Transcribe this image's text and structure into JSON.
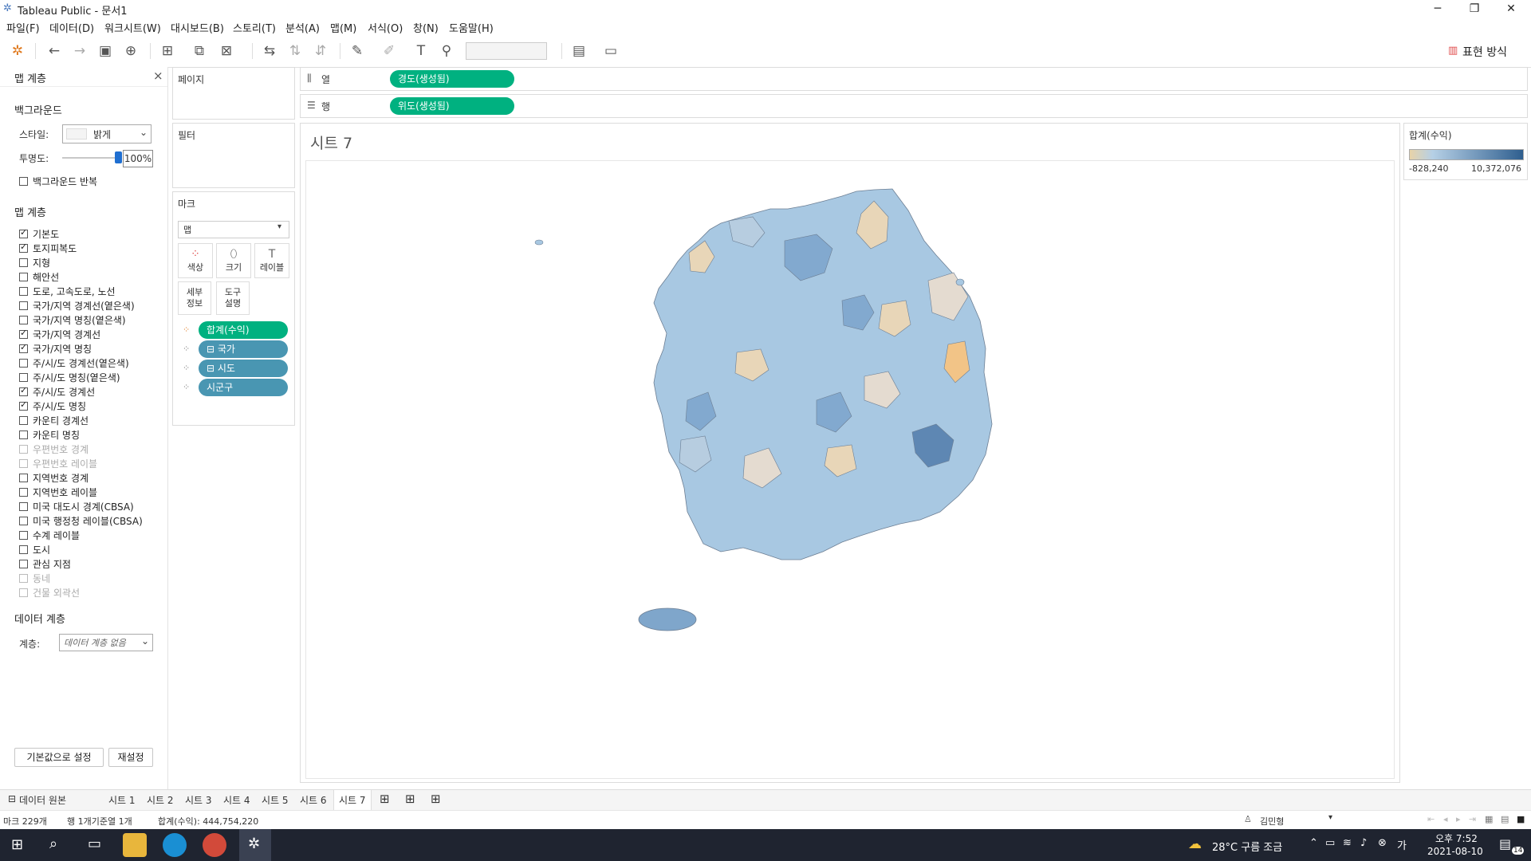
{
  "window": {
    "title": "Tableau Public - 문서1",
    "minimize": "─",
    "maximize": "❐",
    "close": "✕"
  },
  "menu": [
    "파일(F)",
    "데이터(D)",
    "워크시트(W)",
    "대시보드(B)",
    "스토리(T)",
    "분석(A)",
    "맵(M)",
    "서식(O)",
    "창(N)",
    "도움말(H)"
  ],
  "toolbar": {
    "present_label": "표현 방식"
  },
  "map_layers_panel": {
    "title": "맵 계층",
    "close": "×",
    "background": {
      "title": "백그라운드",
      "style_label": "스타일:",
      "style_value": "밝게",
      "opacity_label": "투명도:",
      "opacity_value": "100%",
      "opacity_level": 1.0,
      "repeat_label": "백그라운드 반복",
      "repeat_checked": false
    },
    "layers_title": "맵 계층",
    "layers": [
      {
        "label": "기본도",
        "checked": true,
        "disabled": false
      },
      {
        "label": "토지피복도",
        "checked": true,
        "disabled": false
      },
      {
        "label": "지형",
        "checked": false,
        "disabled": false
      },
      {
        "label": "해안선",
        "checked": false,
        "disabled": false
      },
      {
        "label": "도로, 고속도로, 노선",
        "checked": false,
        "disabled": false
      },
      {
        "label": "국가/지역 경계선(옅은색)",
        "checked": false,
        "disabled": false
      },
      {
        "label": "국가/지역 명칭(옅은색)",
        "checked": false,
        "disabled": false
      },
      {
        "label": "국가/지역 경계선",
        "checked": true,
        "disabled": false
      },
      {
        "label": "국가/지역 명칭",
        "checked": true,
        "disabled": false
      },
      {
        "label": "주/시/도 경계선(옅은색)",
        "checked": false,
        "disabled": false
      },
      {
        "label": "주/시/도 명칭(옅은색)",
        "checked": false,
        "disabled": false
      },
      {
        "label": "주/시/도 경계선",
        "checked": true,
        "disabled": false
      },
      {
        "label": "주/시/도 명칭",
        "checked": true,
        "disabled": false
      },
      {
        "label": "카운티 경계선",
        "checked": false,
        "disabled": false
      },
      {
        "label": "카운티 명칭",
        "checked": false,
        "disabled": false
      },
      {
        "label": "우편번호 경계",
        "checked": false,
        "disabled": true
      },
      {
        "label": "우편번호 레이블",
        "checked": false,
        "disabled": true
      },
      {
        "label": "지역번호 경계",
        "checked": false,
        "disabled": false
      },
      {
        "label": "지역번호 레이블",
        "checked": false,
        "disabled": false
      },
      {
        "label": "미국 대도시 경계(CBSA)",
        "checked": false,
        "disabled": false
      },
      {
        "label": "미국 행정청 레이블(CBSA)",
        "checked": false,
        "disabled": false
      },
      {
        "label": "수계 레이블",
        "checked": false,
        "disabled": false
      },
      {
        "label": "도시",
        "checked": false,
        "disabled": false
      },
      {
        "label": "관심 지점",
        "checked": false,
        "disabled": false
      },
      {
        "label": "동네",
        "checked": false,
        "disabled": true
      },
      {
        "label": "건물 외곽선",
        "checked": false,
        "disabled": true
      }
    ],
    "data_layer": {
      "title": "데이터 계층",
      "label": "계층:",
      "value": "데이터 계층 없음"
    },
    "set_default_button": "기본값으로 설정",
    "reset_button": "재설정"
  },
  "pages_card": {
    "title": "페이지"
  },
  "filters_card": {
    "title": "필터"
  },
  "marks_card": {
    "title": "마크",
    "type": "맵",
    "buttons": [
      {
        "label": "색상",
        "icon": "color-icon"
      },
      {
        "label": "크기",
        "icon": "size-icon"
      },
      {
        "label": "레이블",
        "icon": "label-icon"
      },
      {
        "label": "세부\n정보",
        "icon": "detail-icon"
      },
      {
        "label": "도구\n설명",
        "icon": "tooltip-icon"
      }
    ],
    "fields": [
      {
        "label": "합계(수익)",
        "kind": "color",
        "pill_color": "#00b180"
      },
      {
        "label": "⊟ 국가",
        "kind": "detail",
        "pill_color": "#4996b2"
      },
      {
        "label": "⊟ 시도",
        "kind": "detail",
        "pill_color": "#4996b2"
      },
      {
        "label": "시군구",
        "kind": "detail",
        "pill_color": "#4996b2"
      }
    ]
  },
  "shelves": {
    "columns_label": "열",
    "columns_pill": "경도(생성됨)",
    "rows_label": "행",
    "rows_pill": "위도(생성됨)"
  },
  "view": {
    "sheet_title": "시트 7"
  },
  "legend": {
    "title": "합계(수익)",
    "min_label": "-828,240",
    "max_label": "10,372,076",
    "color_low": "#e8d3a8",
    "color_high": "#2f5f8f"
  },
  "sheet_tabs": {
    "data_source": "데이터 원본",
    "tabs": [
      "시트 1",
      "시트 2",
      "시트 3",
      "시트 4",
      "시트 5",
      "시트 6",
      "시트 7"
    ],
    "active": "시트 7"
  },
  "status": {
    "marks": "마크 229개",
    "rows": "행 1개기준열 1개",
    "sum": "합계(수익): 444,754,220",
    "user": "김민형"
  },
  "taskbar": {
    "weather": "28°C 구름 조금",
    "time": "오후 7:52",
    "date": "2021-08-10",
    "notifications": "14"
  },
  "colors": {
    "accent_green": "#00b180",
    "pill_blue": "#4996b2",
    "taskbar_bg": "#1f2430"
  }
}
